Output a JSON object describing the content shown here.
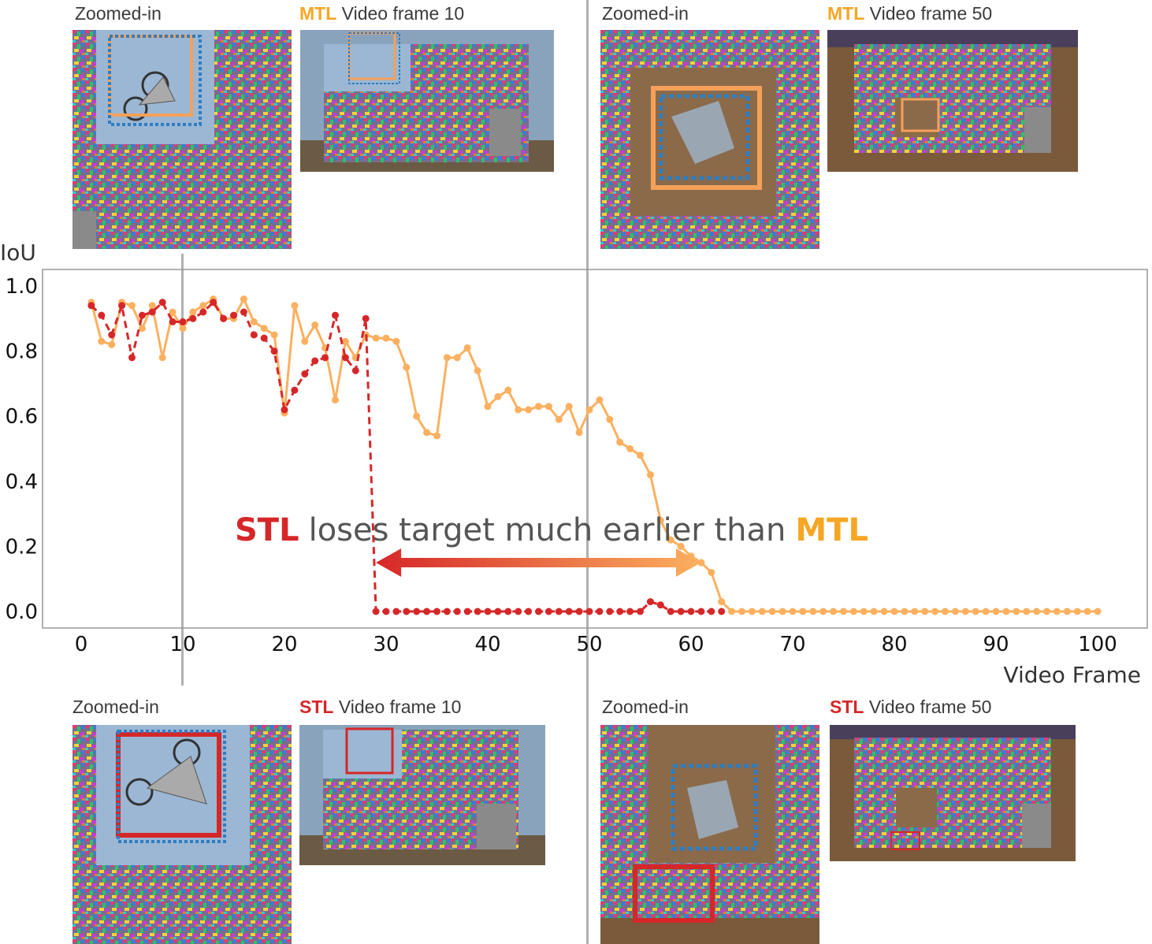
{
  "panels": {
    "mtl_zoom_10_label": "Zoomed-in",
    "mtl_frame_10_tag": "MTL",
    "mtl_frame_10_label": "Video frame 10",
    "mtl_zoom_50_label": "Zoomed-in",
    "mtl_frame_50_tag": "MTL",
    "mtl_frame_50_label": "Video frame 50",
    "stl_zoom_10_label": "Zoomed-in",
    "stl_frame_10_tag": "STL",
    "stl_frame_10_label": "Video frame 10",
    "stl_zoom_50_label": "Zoomed-in",
    "stl_frame_50_tag": "STL",
    "stl_frame_50_label": "Video frame 50"
  },
  "annotation": {
    "stl": "STL",
    "middle": "loses target much earlier than",
    "mtl": "MTL"
  },
  "colors": {
    "mtl": "#fbb05f",
    "stl": "#d62728",
    "gt_box": "#2f7dc1",
    "mtl_box": "#f5a05a",
    "stl_box": "#d62728"
  },
  "chart_data": {
    "type": "line",
    "xlabel": "Video Frame",
    "ylabel": "IoU",
    "xlim": [
      0,
      100
    ],
    "ylim": [
      0,
      1.0
    ],
    "xticks": [
      0,
      10,
      20,
      30,
      40,
      50,
      60,
      70,
      80,
      90,
      100
    ],
    "yticks": [
      0.0,
      0.2,
      0.4,
      0.6,
      0.8,
      1.0
    ],
    "ytick_labels": [
      "0.0",
      "0.2",
      "0.4",
      "0.6",
      "0.8",
      "1.0"
    ],
    "grid": false,
    "series": [
      {
        "name": "MTL",
        "style": "solid",
        "x": [
          1,
          2,
          3,
          4,
          5,
          6,
          7,
          8,
          9,
          10,
          11,
          12,
          13,
          14,
          15,
          16,
          17,
          18,
          19,
          20,
          21,
          22,
          23,
          24,
          25,
          26,
          27,
          28,
          29,
          30,
          31,
          32,
          33,
          34,
          35,
          36,
          37,
          38,
          39,
          40,
          41,
          42,
          43,
          44,
          45,
          46,
          47,
          48,
          49,
          50,
          51,
          52,
          53,
          54,
          55,
          56,
          57,
          58,
          59,
          60,
          61,
          62,
          63,
          64,
          65,
          66,
          67,
          68,
          69,
          70,
          71,
          72,
          73,
          74,
          75,
          76,
          77,
          78,
          79,
          80,
          81,
          82,
          83,
          84,
          85,
          86,
          87,
          88,
          89,
          90,
          91,
          92,
          93,
          94,
          95,
          96,
          97,
          98,
          99,
          100
        ],
        "y": [
          0.95,
          0.83,
          0.82,
          0.95,
          0.94,
          0.87,
          0.94,
          0.78,
          0.92,
          0.87,
          0.92,
          0.94,
          0.96,
          0.9,
          0.9,
          0.96,
          0.89,
          0.87,
          0.85,
          0.61,
          0.94,
          0.83,
          0.88,
          0.81,
          0.65,
          0.83,
          0.78,
          0.85,
          0.84,
          0.84,
          0.83,
          0.75,
          0.6,
          0.55,
          0.54,
          0.78,
          0.78,
          0.81,
          0.74,
          0.63,
          0.66,
          0.68,
          0.62,
          0.62,
          0.63,
          0.63,
          0.59,
          0.63,
          0.55,
          0.62,
          0.65,
          0.59,
          0.52,
          0.5,
          0.48,
          0.42,
          0.28,
          0.22,
          0.2,
          0.17,
          0.15,
          0.12,
          0.03,
          0.0,
          0.0,
          0.0,
          0.0,
          0.0,
          0.0,
          0.0,
          0.0,
          0.0,
          0.0,
          0.0,
          0.0,
          0.0,
          0.0,
          0.0,
          0.0,
          0.0,
          0.0,
          0.0,
          0.0,
          0.0,
          0.0,
          0.0,
          0.0,
          0.0,
          0.0,
          0.0,
          0.0,
          0.0,
          0.0,
          0.0,
          0.0,
          0.0,
          0.0,
          0.0,
          0.0,
          0.0
        ]
      },
      {
        "name": "STL",
        "style": "dashed",
        "x": [
          1,
          2,
          3,
          4,
          5,
          6,
          7,
          8,
          9,
          10,
          11,
          12,
          13,
          14,
          15,
          16,
          17,
          18,
          19,
          20,
          21,
          22,
          23,
          24,
          25,
          26,
          27,
          28,
          29,
          30,
          31,
          32,
          33,
          34,
          35,
          36,
          37,
          38,
          39,
          40,
          41,
          42,
          43,
          44,
          45,
          46,
          47,
          48,
          49,
          50,
          51,
          52,
          53,
          54,
          55,
          56,
          57,
          58,
          59,
          60,
          61,
          62,
          63
        ],
        "y": [
          0.94,
          0.91,
          0.85,
          0.94,
          0.78,
          0.91,
          0.92,
          0.95,
          0.89,
          0.89,
          0.9,
          0.92,
          0.95,
          0.9,
          0.91,
          0.92,
          0.85,
          0.84,
          0.8,
          0.62,
          0.68,
          0.73,
          0.77,
          0.78,
          0.91,
          0.78,
          0.74,
          0.9,
          0.0,
          0.0,
          0.0,
          0.0,
          0.0,
          0.0,
          0.0,
          0.0,
          0.0,
          0.0,
          0.0,
          0.0,
          0.0,
          0.0,
          0.0,
          0.0,
          0.0,
          0.0,
          0.0,
          0.0,
          0.0,
          0.0,
          0.0,
          0.0,
          0.0,
          0.0,
          0.0,
          0.03,
          0.02,
          0.0,
          0.0,
          0.0,
          0.0,
          0.0,
          0.0
        ]
      }
    ],
    "arrow": {
      "from_x": 29,
      "to_x": 61,
      "y": 0.15
    }
  }
}
